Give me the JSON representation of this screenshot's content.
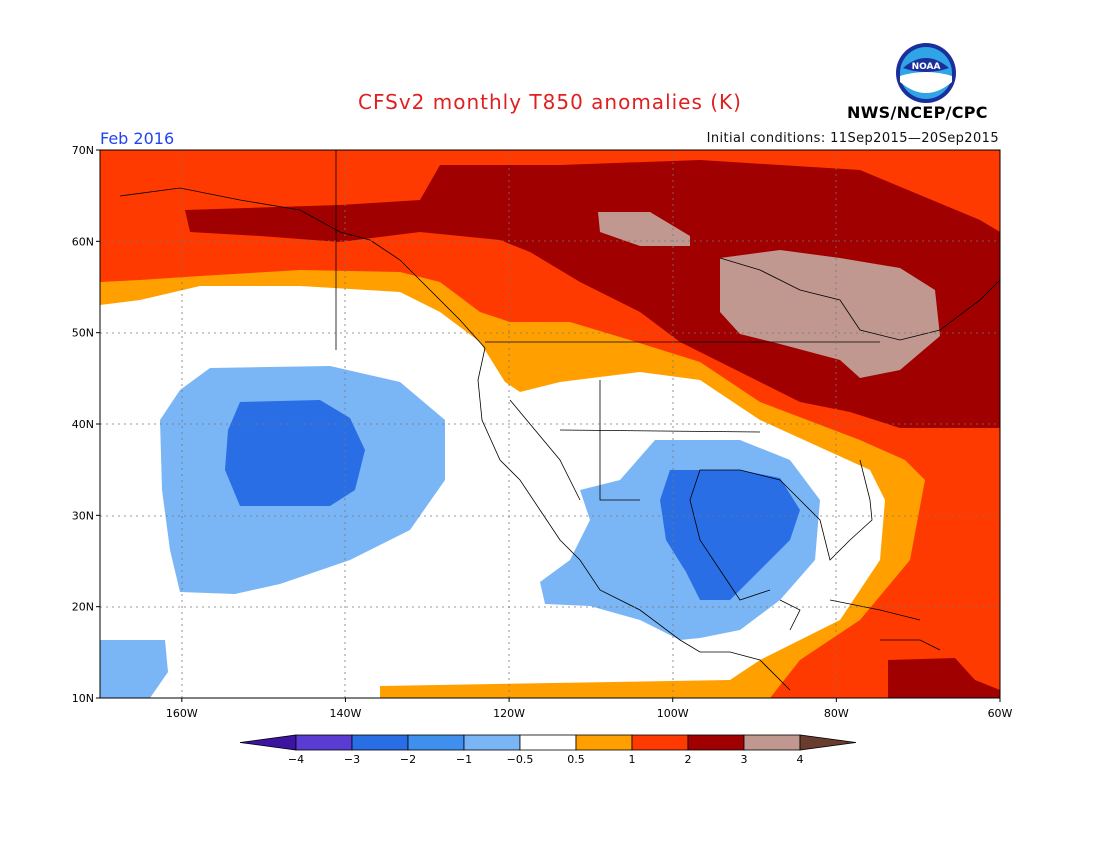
{
  "header": {
    "title": "CFSv2 monthly T850 anomalies (K)",
    "month": "Feb 2016",
    "initial_conditions": "Initial conditions: 11Sep2015—20Sep2015",
    "agency": "NWS/NCEP/CPC",
    "logo_text": "NOAA"
  },
  "map": {
    "projection": "cylindrical",
    "lon_range": [
      -170,
      -60
    ],
    "lat_range": [
      10,
      70
    ],
    "lat_labels": [
      "70N",
      "60N",
      "50N",
      "40N",
      "30N",
      "20N",
      "10N"
    ],
    "lon_labels": [
      "160W",
      "140W",
      "120W",
      "100W",
      "80W",
      "60W"
    ],
    "grid": "dotted",
    "variable": "T850 anomaly",
    "units": "K"
  },
  "colorbar": {
    "labels": [
      "-4",
      "-3",
      "-2",
      "-1",
      "-0.5",
      "0.5",
      "1",
      "2",
      "3",
      "4"
    ],
    "colors": [
      "#3c14a0",
      "#5a3cd2",
      "#2a6ee6",
      "#3f8fee",
      "#7ab6f6",
      "#ffffff",
      "#ffa000",
      "#ff3a00",
      "#a00000",
      "#c09890",
      "#6a3c30"
    ],
    "extend": "both"
  }
}
